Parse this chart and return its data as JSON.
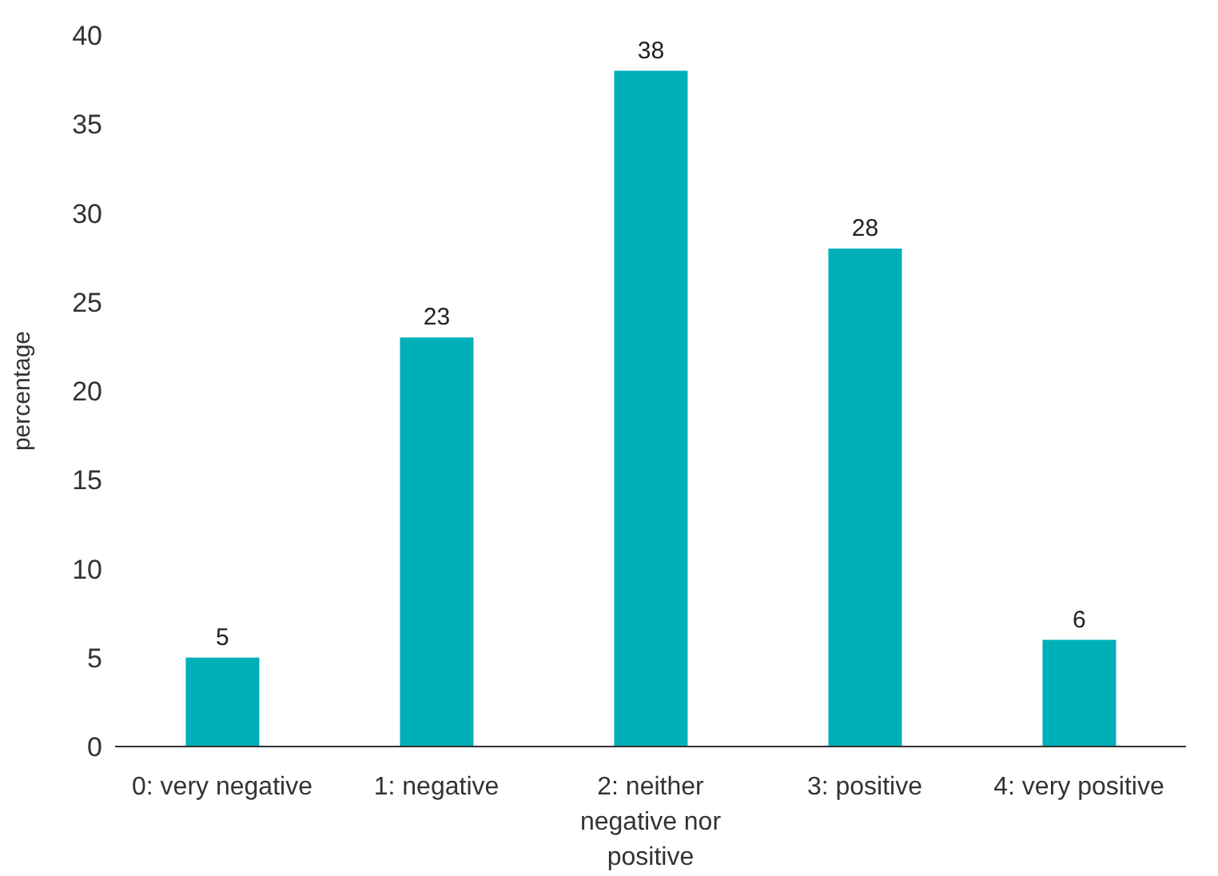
{
  "chart_data": {
    "type": "bar",
    "ylabel": "percentage",
    "categories": [
      "0: very negative",
      "1: negative",
      "2: neither negative nor positive",
      "3: positive",
      "4: very positive"
    ],
    "values": [
      5,
      23,
      38,
      28,
      6
    ],
    "color": "#00b0b9",
    "ylim": [
      0,
      40
    ],
    "yticks": [
      0,
      5,
      10,
      15,
      20,
      25,
      30,
      35,
      40
    ],
    "grid": false,
    "data_labels": true,
    "legend": false
  }
}
